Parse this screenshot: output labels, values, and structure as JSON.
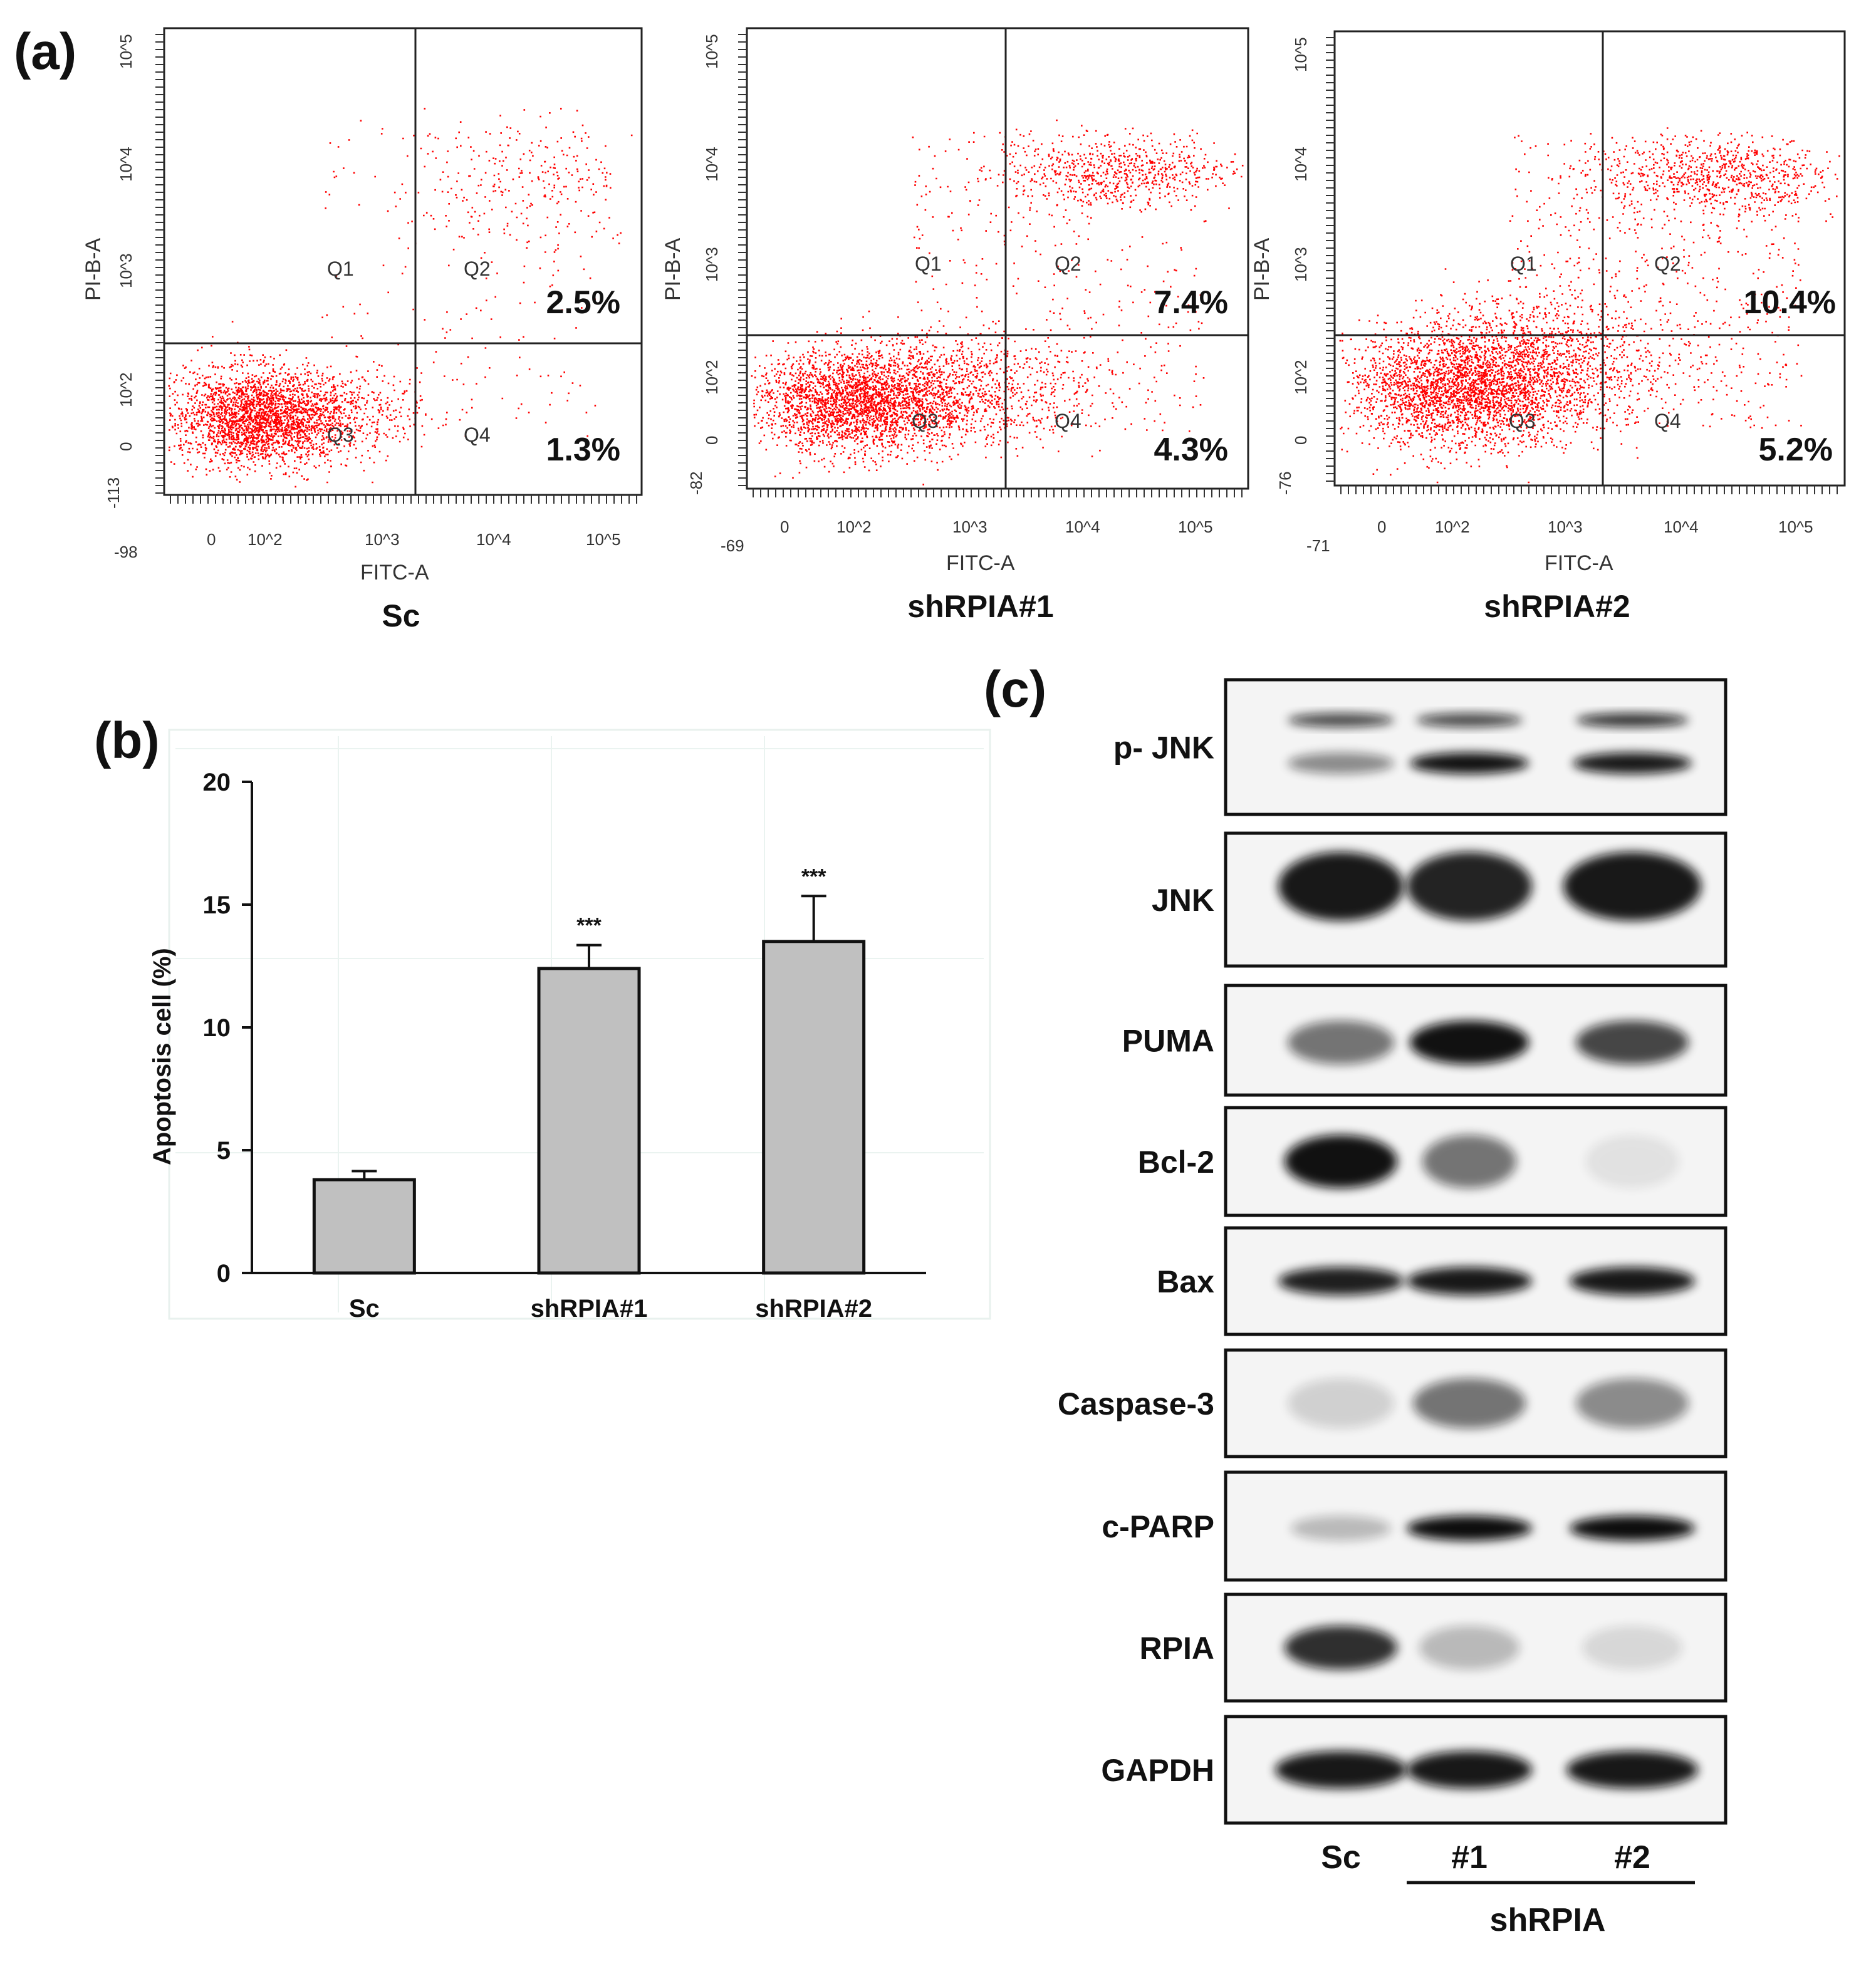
{
  "panel_labels": {
    "a": "(a)",
    "b": "(b)",
    "c": "(c)"
  },
  "flow_panels": [
    {
      "name": "Sc",
      "ylabel": "PI-B-A",
      "xlabel": "FITC-A",
      "y_ticks": [
        "10^5",
        "10^4",
        "10^3",
        "10^2",
        "0",
        "-113"
      ],
      "x_ticks": [
        "-98",
        "0",
        "10^2",
        "10^3",
        "10^4",
        "10^5"
      ],
      "quadrants": [
        "Q1",
        "Q2",
        "Q3",
        "Q4"
      ],
      "q2_percent": "2.5%",
      "q4_percent": "1.3%"
    },
    {
      "name": "shRPIA#1",
      "ylabel": "PI-B-A",
      "xlabel": "FITC-A",
      "y_ticks": [
        "10^5",
        "10^4",
        "10^3",
        "10^2",
        "0",
        "-82"
      ],
      "x_ticks": [
        "-69",
        "0",
        "10^2",
        "10^3",
        "10^4",
        "10^5"
      ],
      "quadrants": [
        "Q1",
        "Q2",
        "Q3",
        "Q4"
      ],
      "q2_percent": "7.4%",
      "q4_percent": "4.3%"
    },
    {
      "name": "shRPIA#2",
      "ylabel": "PI-B-A",
      "xlabel": "FITC-A",
      "y_ticks": [
        "10^5",
        "10^4",
        "10^3",
        "10^2",
        "0",
        "-76"
      ],
      "x_ticks": [
        "-71",
        "0",
        "10^2",
        "10^3",
        "10^4",
        "10^5"
      ],
      "quadrants": [
        "Q1",
        "Q2",
        "Q3",
        "Q4"
      ],
      "q2_percent": "10.4%",
      "q4_percent": "5.2%"
    }
  ],
  "chart_data": {
    "type": "bar",
    "title": "",
    "xlabel": "",
    "ylabel": "Apoptosis cell  (%)",
    "categories": [
      "Sc",
      "shRPIA#1",
      "shRPIA#2"
    ],
    "values": [
      3.8,
      12.4,
      13.5
    ],
    "errors": [
      0.35,
      0.95,
      1.85
    ],
    "significance": [
      "",
      "***",
      "***"
    ],
    "ylim": [
      0,
      20
    ],
    "yticks": [
      0,
      5,
      10,
      15,
      20
    ],
    "bar_color": "#c0c0c0"
  },
  "western_blot": {
    "bands": [
      "p- JNK",
      "JNK",
      "PUMA",
      "Bcl-2",
      "Bax",
      "Caspase-3",
      "c-PARP",
      "RPIA",
      "GAPDH"
    ],
    "lanes": [
      "Sc",
      "#1",
      "#2"
    ],
    "group_label": "shRPIA"
  },
  "colors": {
    "dot": "#ff0000",
    "text": "#111111"
  }
}
